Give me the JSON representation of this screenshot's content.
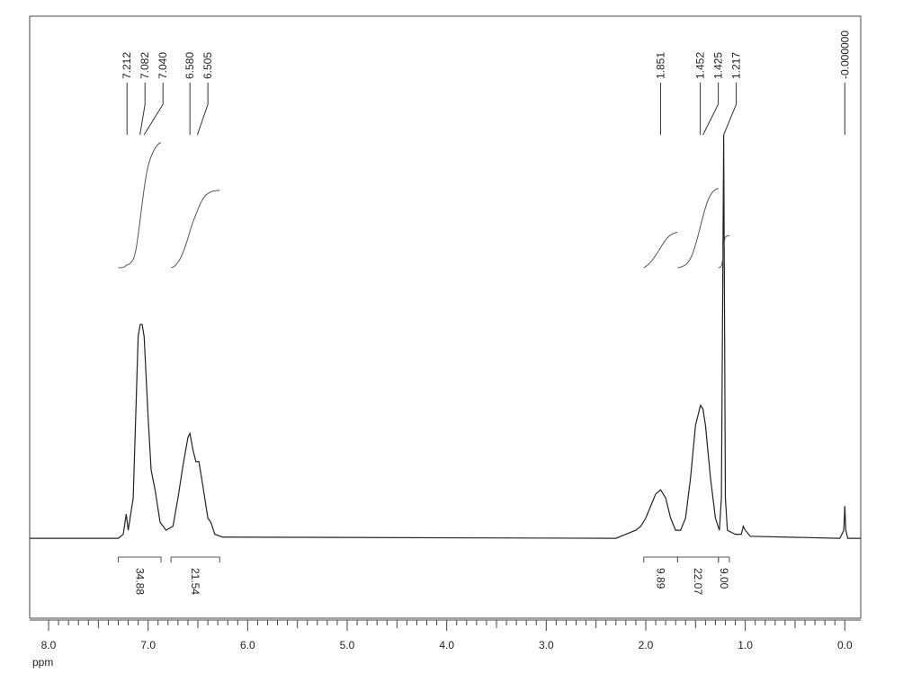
{
  "chart_data": {
    "type": "line",
    "x_label": "ppm",
    "color": "#222222",
    "xlim": [
      8.19,
      -0.16
    ],
    "ylim": [
      -19.8,
      129.4
    ],
    "xticks": [
      {
        "value": 8,
        "label": "8.0"
      },
      {
        "value": 7,
        "label": "7.0"
      },
      {
        "value": 6,
        "label": "6.0"
      },
      {
        "value": 5,
        "label": "5.0"
      },
      {
        "value": 4,
        "label": "4.0"
      },
      {
        "value": 3,
        "label": "3.0"
      },
      {
        "value": 2,
        "label": "2.0"
      },
      {
        "value": 1,
        "label": "1.0"
      },
      {
        "value": 0,
        "label": "0.0"
      }
    ],
    "x": [
      8.19,
      7.3,
      7.25,
      7.22,
      7.2,
      7.15,
      7.1,
      7.08,
      7.06,
      7.04,
      7.0,
      6.97,
      6.93,
      6.88,
      6.82,
      6.75,
      6.7,
      6.65,
      6.6,
      6.58,
      6.55,
      6.52,
      6.49,
      6.45,
      6.4,
      6.37,
      6.33,
      6.25,
      2.3,
      2.2,
      2.1,
      2.05,
      2.0,
      1.95,
      1.9,
      1.85,
      1.8,
      1.75,
      1.7,
      1.65,
      1.6,
      1.55,
      1.5,
      1.45,
      1.425,
      1.4,
      1.35,
      1.3,
      1.26,
      1.24,
      1.217,
      1.2,
      1.18,
      1.1,
      1.04,
      1.02,
      1.0,
      0.95,
      0.05,
      0.01,
      0.0,
      -0.01,
      -0.03,
      -0.16
    ],
    "values": [
      0,
      0,
      1,
      6,
      2,
      10,
      50,
      53,
      53,
      50,
      30,
      17,
      12,
      4,
      2,
      3,
      10,
      18,
      25,
      26,
      22,
      19,
      19,
      13,
      5,
      4,
      1,
      0.3,
      0,
      1,
      2,
      3,
      5,
      8,
      11,
      12,
      10,
      5,
      2,
      2,
      5,
      15,
      28,
      33,
      32,
      28,
      15,
      5,
      2,
      10,
      100,
      10,
      2,
      1,
      1,
      3,
      2,
      0.5,
      0,
      2,
      8,
      2,
      0,
      0
    ],
    "peaks": [
      7.212,
      7.082,
      {
        "value": 7.04,
        "label": "7.040"
      },
      {
        "value": 6.58,
        "label": "6.580"
      },
      6.505,
      1.851,
      1.452,
      1.425,
      1.217,
      {
        "value": 0,
        "label": "-0.000000"
      }
    ],
    "integrals": {
      "ranges": [
        [
          7.3,
          6.87
        ],
        [
          6.77,
          6.28
        ],
        [
          2.02,
          1.68
        ],
        [
          1.68,
          1.27
        ],
        [
          1.27,
          1.16
        ]
      ],
      "values": [
        34.88,
        21.54,
        9.89,
        22.07,
        9
      ],
      "value_labels": [
        "34.88",
        "21.54",
        "9.89",
        "22.07",
        "9.00"
      ]
    }
  }
}
